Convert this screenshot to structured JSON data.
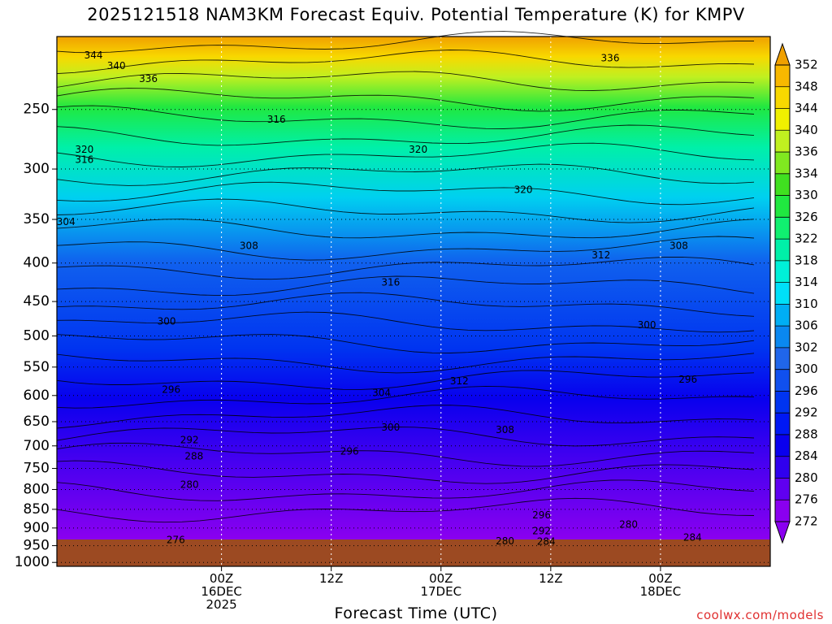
{
  "title": "2025121518 NAM3KM Forecast Equiv. Potential Temperature (K) for KMPV",
  "xlabel": "Forecast Time (UTC)",
  "credit": "coolwx.com/models",
  "colors": {
    "ground": "#9c4a22",
    "grid": "#000000",
    "credit": "#e03030"
  },
  "chart_data": {
    "type": "heatmap",
    "title": "2025121518 NAM3KM Forecast Equiv. Potential Temperature (K) for KMPV",
    "xlabel": "Forecast Time (UTC)",
    "ylabel": "",
    "y_axis": {
      "scale": "log",
      "range_hpa": [
        1000,
        200
      ],
      "ticks": [
        250,
        300,
        350,
        400,
        450,
        500,
        550,
        600,
        650,
        700,
        750,
        800,
        850,
        900,
        950,
        1000
      ]
    },
    "x_axis": {
      "range_hours_from_init": [
        -12,
        66
      ],
      "ticks": [
        {
          "hour": 6,
          "lines": [
            "00Z",
            "16DEC",
            "2025"
          ]
        },
        {
          "hour": 18,
          "lines": [
            "12Z",
            "",
            ""
          ]
        },
        {
          "hour": 30,
          "lines": [
            "00Z",
            "17DEC",
            ""
          ]
        },
        {
          "hour": 42,
          "lines": [
            "12Z",
            "",
            ""
          ]
        },
        {
          "hour": 54,
          "lines": [
            "00Z",
            "18DEC",
            ""
          ]
        }
      ]
    },
    "grid": true,
    "colorbar": {
      "levels": [
        272,
        276,
        280,
        284,
        288,
        292,
        296,
        300,
        302,
        306,
        310,
        314,
        318,
        322,
        326,
        330,
        334,
        336,
        340,
        344,
        348,
        352
      ],
      "colors": [
        "#8a00f0",
        "#6000f0",
        "#3000ee",
        "#0a00ee",
        "#0018f4",
        "#0034f0",
        "#1050ee",
        "#2066ea",
        "#0a88f0",
        "#00aef4",
        "#00e0f8",
        "#00f0d8",
        "#00f0a8",
        "#10f070",
        "#20e840",
        "#40e020",
        "#80e820",
        "#c0f020",
        "#f0f000",
        "#f8d800",
        "#f8b800",
        "#f0a000"
      ]
    },
    "contour_labels": [
      {
        "value": "344",
        "hour": -8.0,
        "p": 212
      },
      {
        "value": "340",
        "hour": -5.5,
        "p": 219
      },
      {
        "value": "336",
        "hour": -2.0,
        "p": 228
      },
      {
        "value": "336",
        "hour": 48.5,
        "p": 214
      },
      {
        "value": "316",
        "hour": 12.0,
        "p": 258
      },
      {
        "value": "320",
        "hour": -9.0,
        "p": 283
      },
      {
        "value": "316",
        "hour": -9.0,
        "p": 292
      },
      {
        "value": "320",
        "hour": 27.5,
        "p": 283
      },
      {
        "value": "320",
        "hour": 39.0,
        "p": 320
      },
      {
        "value": "304",
        "hour": -11.0,
        "p": 353
      },
      {
        "value": "308",
        "hour": 9.0,
        "p": 380
      },
      {
        "value": "316",
        "hour": 24.5,
        "p": 425
      },
      {
        "value": "312",
        "hour": 47.5,
        "p": 391
      },
      {
        "value": "308",
        "hour": 56.0,
        "p": 380
      },
      {
        "value": "300",
        "hour": 0.0,
        "p": 479
      },
      {
        "value": "300",
        "hour": 52.5,
        "p": 484
      },
      {
        "value": "296",
        "hour": 0.5,
        "p": 590
      },
      {
        "value": "312",
        "hour": 32.0,
        "p": 575
      },
      {
        "value": "304",
        "hour": 23.5,
        "p": 596
      },
      {
        "value": "296",
        "hour": 57.0,
        "p": 572
      },
      {
        "value": "292",
        "hour": 2.5,
        "p": 688
      },
      {
        "value": "300",
        "hour": 24.5,
        "p": 662
      },
      {
        "value": "308",
        "hour": 37.0,
        "p": 667
      },
      {
        "value": "288",
        "hour": 3.0,
        "p": 723
      },
      {
        "value": "296",
        "hour": 20.0,
        "p": 713
      },
      {
        "value": "280",
        "hour": 2.5,
        "p": 789
      },
      {
        "value": "296",
        "hour": 41.0,
        "p": 866
      },
      {
        "value": "292",
        "hour": 41.0,
        "p": 909
      },
      {
        "value": "280",
        "hour": 37.0,
        "p": 938
      },
      {
        "value": "284",
        "hour": 41.5,
        "p": 939
      },
      {
        "value": "280",
        "hour": 50.5,
        "p": 892
      },
      {
        "value": "284",
        "hour": 57.5,
        "p": 928
      },
      {
        "value": "276",
        "hour": 1.0,
        "p": 935
      }
    ]
  }
}
